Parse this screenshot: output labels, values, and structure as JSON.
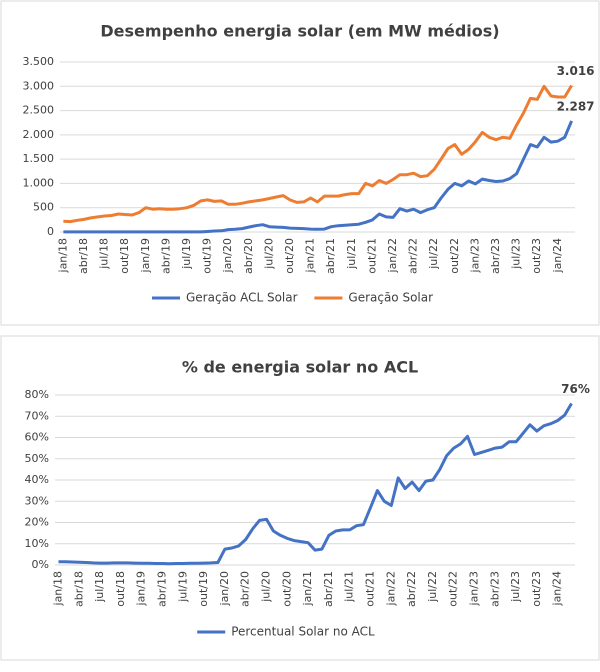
{
  "chart_data": [
    {
      "type": "line",
      "title": "Desempenho energia solar (em MW médios)",
      "categories": [
        "jan/18",
        null,
        null,
        "abr/18",
        null,
        null,
        "jul/18",
        null,
        null,
        "out/18",
        null,
        null,
        "jan/19",
        null,
        null,
        "abr/19",
        null,
        null,
        "jul/19",
        null,
        null,
        "out/19",
        null,
        null,
        "jan/20",
        null,
        null,
        "abr/20",
        null,
        null,
        "jul/20",
        null,
        null,
        "out/20",
        null,
        null,
        "jan/21",
        null,
        null,
        "abr/21",
        null,
        null,
        "jul/21",
        null,
        null,
        "out/21",
        null,
        null,
        "jan/22",
        null,
        null,
        "abr/22",
        null,
        null,
        "jul/22",
        null,
        null,
        "out/22",
        null,
        null,
        "jan/23",
        null,
        null,
        "abr/23",
        null,
        null,
        "jul/23",
        null,
        null,
        "out/23",
        null,
        null,
        "jan/24",
        null,
        null
      ],
      "series": [
        {
          "name": "Geração ACL Solar",
          "color": "#4472c4",
          "values": [
            2,
            2,
            2,
            2,
            2,
            2,
            2,
            2,
            2,
            2,
            2,
            2,
            3,
            3,
            3,
            3,
            3,
            3,
            3,
            3,
            3,
            10,
            20,
            25,
            50,
            55,
            70,
            100,
            130,
            150,
            110,
            100,
            95,
            80,
            75,
            70,
            60,
            55,
            60,
            110,
            130,
            140,
            150,
            160,
            200,
            250,
            370,
            310,
            300,
            480,
            430,
            470,
            400,
            460,
            500,
            700,
            880,
            1000,
            950,
            1050,
            990,
            1090,
            1060,
            1040,
            1050,
            1100,
            1200,
            1500,
            1800,
            1750,
            1950,
            1850,
            1870,
            1950,
            2287
          ],
          "value_labels": [
            null,
            null,
            null,
            null,
            null,
            null,
            null,
            null,
            null,
            null,
            null,
            null,
            null,
            null,
            null,
            null,
            null,
            null,
            null,
            null,
            null,
            null,
            null,
            null,
            null,
            null,
            null,
            null,
            null,
            null,
            null,
            null,
            null,
            null,
            null,
            null,
            null,
            null,
            null,
            null,
            null,
            null,
            null,
            null,
            null,
            null,
            null,
            null,
            null,
            null,
            null,
            null,
            null,
            null,
            null,
            null,
            null,
            null,
            null,
            null,
            null,
            null,
            null,
            null,
            null,
            null,
            null,
            null,
            null,
            null,
            null,
            null,
            null,
            null,
            "2.287"
          ]
        },
        {
          "name": "Geração Solar",
          "color": "#ed7d31",
          "values": [
            220,
            215,
            240,
            260,
            290,
            310,
            330,
            340,
            370,
            360,
            350,
            400,
            500,
            470,
            480,
            470,
            470,
            480,
            500,
            550,
            640,
            660,
            630,
            640,
            570,
            570,
            590,
            620,
            640,
            660,
            690,
            720,
            750,
            660,
            610,
            620,
            700,
            620,
            740,
            740,
            740,
            770,
            790,
            790,
            1000,
            950,
            1060,
            1000,
            1080,
            1180,
            1180,
            1210,
            1140,
            1160,
            1290,
            1500,
            1720,
            1800,
            1600,
            1700,
            1860,
            2050,
            1950,
            1900,
            1950,
            1930,
            2200,
            2450,
            2750,
            2730,
            3000,
            2800,
            2780,
            2780,
            3016
          ],
          "value_labels": [
            null,
            null,
            null,
            null,
            null,
            null,
            null,
            null,
            null,
            null,
            null,
            null,
            null,
            null,
            null,
            null,
            null,
            null,
            null,
            null,
            null,
            null,
            null,
            null,
            null,
            null,
            null,
            null,
            null,
            null,
            null,
            null,
            null,
            null,
            null,
            null,
            null,
            null,
            null,
            null,
            null,
            null,
            null,
            null,
            null,
            null,
            null,
            null,
            null,
            null,
            null,
            null,
            null,
            null,
            null,
            null,
            null,
            null,
            null,
            null,
            null,
            null,
            null,
            null,
            null,
            null,
            null,
            null,
            null,
            null,
            null,
            null,
            null,
            null,
            "3.016"
          ]
        }
      ],
      "ylim": [
        0,
        3500
      ],
      "yticks": [
        0,
        500,
        {
          "value": 1000,
          "label": "1.000"
        },
        {
          "value": 1500,
          "label": "1.500"
        },
        {
          "value": 2000,
          "label": "2.000"
        },
        {
          "value": 2500,
          "label": "2.500"
        },
        {
          "value": 3000,
          "label": "3.000"
        },
        {
          "value": 3500,
          "label": "3.500"
        }
      ],
      "grid": true,
      "legend": "bottom"
    },
    {
      "type": "line",
      "title": "% de energia solar no ACL",
      "categories": [
        "jan/18",
        null,
        null,
        "abr/18",
        null,
        null,
        "jul/18",
        null,
        null,
        "out/18",
        null,
        null,
        "jan/19",
        null,
        null,
        "abr/19",
        null,
        null,
        "jul/19",
        null,
        null,
        "out/19",
        null,
        null,
        "jan/20",
        null,
        null,
        "abr/20",
        null,
        null,
        "jul/20",
        null,
        null,
        "out/20",
        null,
        null,
        "jan/21",
        null,
        null,
        "abr/21",
        null,
        null,
        "jul/21",
        null,
        null,
        "out/21",
        null,
        null,
        "jan/22",
        null,
        null,
        "abr/22",
        null,
        null,
        "jul/22",
        null,
        null,
        "out/22",
        null,
        null,
        "jan/23",
        null,
        null,
        "abr/23",
        null,
        null,
        "jul/23",
        null,
        null,
        "out/23",
        null,
        null,
        "jan/24",
        null,
        null
      ],
      "series": [
        {
          "name": "Percentual Solar no ACL",
          "color": "#4472c4",
          "values": [
            1.5,
            1.5,
            1.4,
            1.3,
            1.2,
            1.0,
            0.9,
            0.9,
            1.0,
            1.0,
            1.0,
            0.9,
            0.8,
            0.8,
            0.7,
            0.7,
            0.6,
            0.7,
            0.7,
            0.8,
            0.8,
            0.9,
            1.0,
            1.2,
            7.5,
            8,
            9,
            12,
            17,
            21,
            21.5,
            16,
            14,
            12.5,
            11.5,
            11,
            10.5,
            7,
            7.5,
            14,
            16,
            16.5,
            16.5,
            18.5,
            19,
            27,
            35,
            30,
            28,
            41,
            36,
            39,
            35,
            39.5,
            40,
            45,
            51.5,
            55,
            57,
            60.5,
            52,
            53,
            54,
            55,
            55.5,
            58,
            58,
            62,
            66,
            63,
            65.5,
            66.5,
            68,
            70.5,
            76
          ],
          "value_labels": [
            null,
            null,
            null,
            null,
            null,
            null,
            null,
            null,
            null,
            null,
            null,
            null,
            null,
            null,
            null,
            null,
            null,
            null,
            null,
            null,
            null,
            null,
            null,
            null,
            null,
            null,
            null,
            null,
            null,
            null,
            null,
            null,
            null,
            null,
            null,
            null,
            null,
            null,
            null,
            null,
            null,
            null,
            null,
            null,
            null,
            null,
            null,
            null,
            null,
            null,
            null,
            null,
            null,
            null,
            null,
            null,
            null,
            null,
            null,
            null,
            null,
            null,
            null,
            null,
            null,
            null,
            null,
            null,
            null,
            null,
            null,
            null,
            null,
            null,
            "76%"
          ]
        }
      ],
      "ylim": [
        0,
        80
      ],
      "yticks": [
        {
          "value": 0,
          "label": "0%"
        },
        {
          "value": 10,
          "label": "10%"
        },
        {
          "value": 20,
          "label": "20%"
        },
        {
          "value": 30,
          "label": "30%"
        },
        {
          "value": 40,
          "label": "40%"
        },
        {
          "value": 50,
          "label": "50%"
        },
        {
          "value": 60,
          "label": "60%"
        },
        {
          "value": 70,
          "label": "70%"
        },
        {
          "value": 80,
          "label": "80%"
        }
      ],
      "grid": true,
      "legend": "bottom"
    }
  ]
}
